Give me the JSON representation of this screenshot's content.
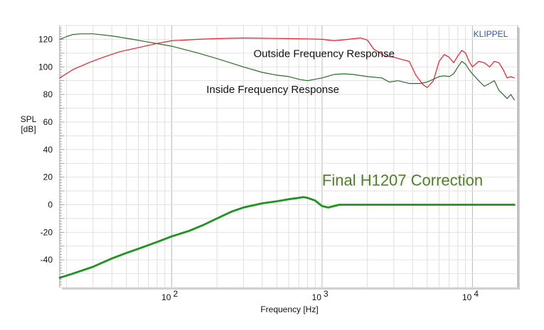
{
  "chart_data": {
    "type": "line",
    "xscale": "log",
    "xlim": [
      18,
      20000
    ],
    "ylim": [
      -60,
      130
    ],
    "grid": true,
    "xlabel": "Frequency  [Hz]",
    "ylabel_line1": "SPL",
    "ylabel_line2": "[dB]",
    "brand": "KLIPPEL",
    "y_ticks": [
      120,
      100,
      80,
      60,
      40,
      20,
      0,
      -20,
      -40
    ],
    "x_ticks": [
      {
        "value": 100,
        "base": "10",
        "exp": "2"
      },
      {
        "value": 1000,
        "base": "10",
        "exp": "3"
      },
      {
        "value": 10000,
        "base": "10",
        "exp": "4"
      }
    ],
    "annotations": [
      {
        "text": "Outside Frequency Response",
        "x": 350,
        "y": 107,
        "size": 15,
        "color": "#111111"
      },
      {
        "text": "Inside Frequency Response",
        "x": 170,
        "y": 81,
        "size": 15,
        "color": "#111111"
      },
      {
        "text": "Final H1207 Correction",
        "x": 1000,
        "y": 14,
        "size": 22,
        "color": "#4f7f26"
      }
    ],
    "series": [
      {
        "key": "outside",
        "color": "#e8202a",
        "width": 1.2,
        "points": [
          [
            18,
            92
          ],
          [
            22,
            98
          ],
          [
            28,
            103
          ],
          [
            35,
            107
          ],
          [
            45,
            111
          ],
          [
            60,
            114
          ],
          [
            80,
            117
          ],
          [
            100,
            119
          ],
          [
            150,
            120
          ],
          [
            200,
            120.5
          ],
          [
            300,
            121
          ],
          [
            400,
            120.8
          ],
          [
            600,
            120.5
          ],
          [
            800,
            120.3
          ],
          [
            1000,
            120
          ],
          [
            1200,
            119
          ],
          [
            1500,
            120
          ],
          [
            1800,
            121
          ],
          [
            2000,
            119.5
          ],
          [
            2200,
            113
          ],
          [
            2600,
            108
          ],
          [
            3000,
            107
          ],
          [
            3500,
            105
          ],
          [
            3800,
            104
          ],
          [
            4200,
            94
          ],
          [
            4700,
            87
          ],
          [
            5000,
            85
          ],
          [
            5500,
            90
          ],
          [
            6000,
            104
          ],
          [
            6500,
            109
          ],
          [
            7000,
            107
          ],
          [
            7500,
            103
          ],
          [
            8000,
            108
          ],
          [
            8500,
            112
          ],
          [
            9000,
            110
          ],
          [
            9500,
            104
          ],
          [
            10000,
            100
          ],
          [
            11000,
            104
          ],
          [
            12000,
            103
          ],
          [
            13000,
            100
          ],
          [
            14000,
            104
          ],
          [
            15000,
            103
          ],
          [
            16000,
            98
          ],
          [
            17000,
            92
          ],
          [
            18000,
            93
          ],
          [
            19000,
            92
          ]
        ]
      },
      {
        "key": "inside",
        "color": "#2c6e2c",
        "width": 1.2,
        "points": [
          [
            18,
            120
          ],
          [
            20,
            122
          ],
          [
            22,
            123.5
          ],
          [
            25,
            124
          ],
          [
            30,
            124
          ],
          [
            40,
            122.5
          ],
          [
            55,
            120
          ],
          [
            70,
            118
          ],
          [
            100,
            115
          ],
          [
            150,
            110
          ],
          [
            200,
            106
          ],
          [
            300,
            100
          ],
          [
            400,
            96
          ],
          [
            500,
            94
          ],
          [
            600,
            93
          ],
          [
            700,
            91
          ],
          [
            800,
            90
          ],
          [
            1000,
            92
          ],
          [
            1200,
            94.5
          ],
          [
            1400,
            95
          ],
          [
            1600,
            94.5
          ],
          [
            2000,
            93
          ],
          [
            2500,
            92
          ],
          [
            2800,
            89
          ],
          [
            3200,
            90
          ],
          [
            3800,
            88
          ],
          [
            4500,
            88
          ],
          [
            5000,
            89
          ],
          [
            5500,
            91
          ],
          [
            6000,
            93
          ],
          [
            6500,
            93.5
          ],
          [
            7000,
            93
          ],
          [
            7500,
            95
          ],
          [
            8000,
            100
          ],
          [
            8500,
            104
          ],
          [
            9000,
            102
          ],
          [
            9500,
            98
          ],
          [
            10000,
            95
          ],
          [
            11000,
            90
          ],
          [
            12000,
            86
          ],
          [
            13000,
            88
          ],
          [
            14000,
            90
          ],
          [
            15000,
            83
          ],
          [
            16000,
            80
          ],
          [
            17000,
            77
          ],
          [
            18000,
            80
          ],
          [
            19000,
            76
          ]
        ]
      },
      {
        "key": "correction",
        "color": "#1f9320",
        "width": 2.8,
        "points": [
          [
            18,
            -53
          ],
          [
            22,
            -50
          ],
          [
            30,
            -45
          ],
          [
            40,
            -39
          ],
          [
            50,
            -35
          ],
          [
            60,
            -32
          ],
          [
            80,
            -27
          ],
          [
            100,
            -23
          ],
          [
            130,
            -19
          ],
          [
            160,
            -15
          ],
          [
            200,
            -10
          ],
          [
            250,
            -5
          ],
          [
            300,
            -2
          ],
          [
            400,
            1
          ],
          [
            500,
            2.5
          ],
          [
            600,
            4
          ],
          [
            700,
            5
          ],
          [
            750,
            5.5
          ],
          [
            800,
            5
          ],
          [
            900,
            3
          ],
          [
            1000,
            -1
          ],
          [
            1100,
            -2
          ],
          [
            1200,
            -1
          ],
          [
            1300,
            0
          ],
          [
            1500,
            0
          ],
          [
            2000,
            0
          ],
          [
            5000,
            0
          ],
          [
            10000,
            0
          ],
          [
            19000,
            0
          ]
        ]
      }
    ]
  }
}
